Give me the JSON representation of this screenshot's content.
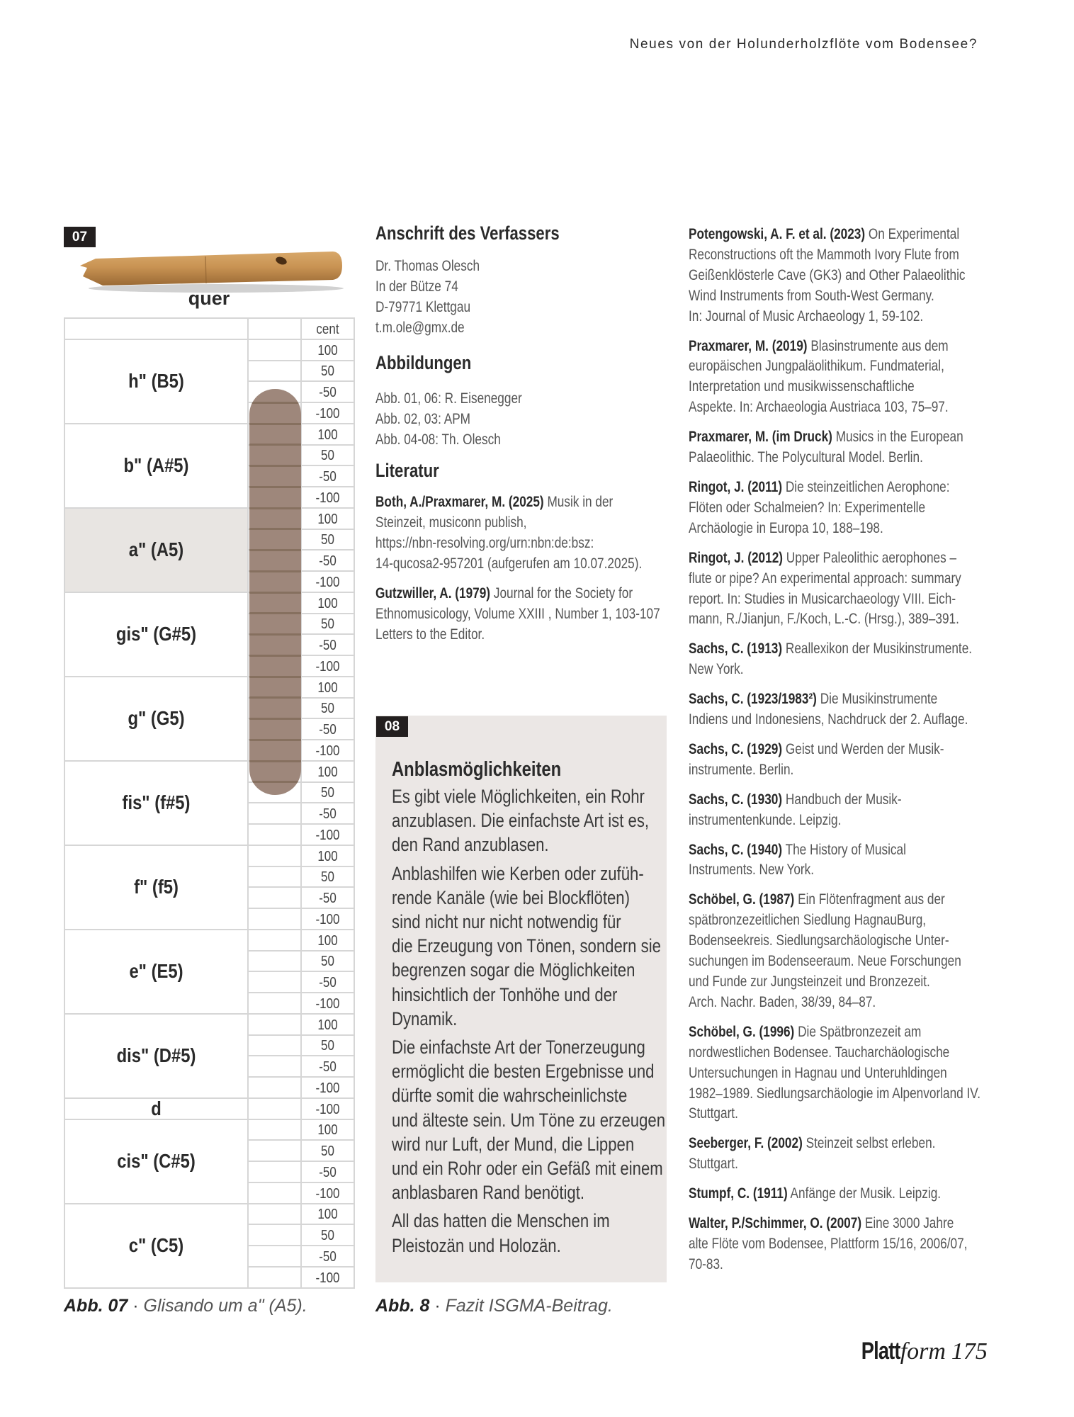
{
  "running_head": "Neues von der Holunderholzflöte vom Bodensee?",
  "figure07": {
    "label": "07",
    "image_caption": "quer",
    "table": {
      "cent_header": "cent",
      "highlighted_note": "a\" (A5)",
      "highlight_color": "#e8e5e2",
      "bar_color": "#9e877b",
      "notes": [
        {
          "name": "h\" (B5)",
          "cents": [
            "100",
            "50",
            "-50",
            "-100"
          ]
        },
        {
          "name": "b\" (A#5)",
          "cents": [
            "100",
            "50",
            "-50",
            "-100"
          ]
        },
        {
          "name": "a\" (A5)",
          "cents": [
            "100",
            "50",
            "-50",
            "-100"
          ]
        },
        {
          "name": "gis\" (G#5)",
          "cents": [
            "100",
            "50",
            "-50",
            "-100"
          ]
        },
        {
          "name": "g\" (G5)",
          "cents": [
            "100",
            "50",
            "-50",
            "-100"
          ]
        },
        {
          "name": "fis\" (f#5)",
          "cents": [
            "100",
            "50",
            "-50",
            "-100"
          ]
        },
        {
          "name": "f\" (f5)",
          "cents": [
            "100",
            "50",
            "-50",
            "-100"
          ]
        },
        {
          "name": "e\" (E5)",
          "cents": [
            "100",
            "50",
            "-50",
            "-100"
          ]
        },
        {
          "name": "dis\" (D#5)",
          "cents": [
            "100",
            "50",
            "-50",
            "-100"
          ]
        },
        {
          "name": "d",
          "cents": [
            "-100"
          ]
        },
        {
          "name": "cis\" (C#5)",
          "cents": [
            "100",
            "50",
            "-50",
            "-100"
          ]
        },
        {
          "name": "c\" (C5)",
          "cents": [
            "100",
            "50",
            "-50",
            "-100"
          ]
        }
      ],
      "glissando": {
        "from": {
          "note": "h\" (B5)",
          "cent": "-50"
        },
        "to": {
          "note": "fis\" (f#5)",
          "cent": "50"
        }
      }
    },
    "caption_prefix": "Abb. 07",
    "caption_sep": " · ",
    "caption_text": "Glisando um a\" (A5)."
  },
  "author_address": {
    "heading": "Anschrift des Verfassers",
    "lines": [
      "Dr. Thomas Olesch",
      "In der Bütze 74",
      "D-79771 Klettgau",
      "t.m.ole@gmx.de"
    ]
  },
  "illustrations": {
    "heading": "Abbildungen",
    "lines": [
      "Abb. 01, 06: R. Eisenegger",
      "Abb. 02, 03: APM",
      "Abb. 04-08: Th. Olesch"
    ]
  },
  "literature": {
    "heading": "Literatur",
    "refs_middle": [
      {
        "author": "Both, A./Praxmarer, M. (2025)",
        "lines": [
          "Musik in der",
          "Steinzeit, musiconn publish,",
          "https://nbn-resolving.org/urn:nbn:de:bsz:",
          "14-qucosa2-957201 (aufgerufen am 10.07.2025)."
        ]
      },
      {
        "author": "Gutzwiller, A. (1979)",
        "lines": [
          "Journal for the Society for",
          "Ethnomusicology, Volume XXIII , Number 1, 103-107",
          "Letters to the Editor."
        ]
      }
    ],
    "refs_right": [
      {
        "author": "Potengowski, A. F. et al. (2023)",
        "lines": [
          "On Experimental",
          "Reconstructions oft the Mammoth Ivory Flute from",
          "Geißenklösterle Cave (GK3) and Other Palaeolithic",
          "Wind Instruments from South-West Germany.",
          "In: Journal of Music Archaeology 1, 59-102."
        ]
      },
      {
        "author": "Praxmarer, M. (2019)",
        "lines": [
          "Blasinstrumente aus dem",
          "europäischen Jungpaläolithikum. Fundmaterial,",
          "Interpretation und musikwissenschaftliche",
          "Aspekte. In: Archaeologia Austriaca 103, 75–97."
        ]
      },
      {
        "author": "Praxmarer, M. (im Druck)",
        "lines": [
          "Musics in the European",
          "Palaeolithic. The Polycultural Model. Berlin."
        ]
      },
      {
        "author": "Ringot, J. (2011)",
        "lines": [
          "Die steinzeitlichen Aerophone:",
          "Flöten oder Schalmeien? In: Experimentelle",
          "Archäologie in Europa 10, 188–198."
        ]
      },
      {
        "author": "Ringot, J. (2012)",
        "lines": [
          "Upper Paleolithic aerophones –",
          "flute or pipe? An experimental approach: summary",
          "report. In: Studies in Musicarchaeology VIII. Eich-",
          "mann, R./Jianjun, F./Koch, L.-C. (Hrsg.), 389–391."
        ]
      },
      {
        "author": "Sachs, C. (1913)",
        "lines": [
          "Reallexikon der Musikinstrumente.",
          "New York."
        ]
      },
      {
        "author": "Sachs, C. (1923/1983²)",
        "lines": [
          "Die Musikinstrumente",
          "Indiens und Indonesiens, Nachdruck der 2. Auflage."
        ]
      },
      {
        "author": "Sachs, C. (1929)",
        "lines": [
          "Geist und Werden der Musik-",
          "instrumente. Berlin."
        ]
      },
      {
        "author": "Sachs, C. (1930)",
        "lines": [
          "Handbuch der Musik-",
          "instrumentenkunde. Leipzig."
        ]
      },
      {
        "author": "Sachs, C. (1940)",
        "lines": [
          "The History of Musical",
          "Instruments. New York."
        ]
      },
      {
        "author": "Schöbel, G. (1987)",
        "lines": [
          "Ein Flötenfragment aus der",
          "spätbronzezeitlichen Siedlung HagnauBurg,",
          "Bodenseekreis. Siedlungsarchäologische Unter-",
          "suchungen im Bodenseeraum. Neue Forschungen",
          "und Funde zur Jungsteinzeit und Bronzezeit.",
          "Arch. Nachr. Baden, 38/39, 84–87."
        ]
      },
      {
        "author": "Schöbel, G. (1996)",
        "lines": [
          "Die Spätbronzezeit am",
          "nordwestlichen Bodensee. Taucharchäologische",
          "Untersuchungen in Hagnau und Unteruhldingen",
          "1982–1989. Siedlungsarchäologie im Alpenvorland IV.",
          "Stuttgart."
        ]
      },
      {
        "author": "Seeberger, F. (2002)",
        "lines": [
          "Steinzeit selbst erleben.",
          "Stuttgart."
        ]
      },
      {
        "author": "Stumpf, C. (1911)",
        "lines": [
          "Anfänge der Musik. Leipzig."
        ]
      },
      {
        "author": "Walter, P./Schimmer, O. (2007)",
        "lines": [
          "Eine 3000 Jahre",
          "alte Flöte vom Bodensee, Plattform 15/16, 2006/07,",
          "70-83."
        ]
      }
    ]
  },
  "figure08": {
    "label": "08",
    "box_color": "#ebe7e5",
    "heading": "Anblasmöglichkeiten",
    "paragraphs": [
      [
        "Es gibt viele Möglichkeiten, ein Rohr",
        "anzublasen. Die einfachste Art ist es,",
        "den Rand anzublasen."
      ],
      [
        "Anblashilfen wie Kerben oder zufüh-",
        "rende Kanäle (wie bei  Blockflöten)",
        "sind nicht nur nicht notwendig für",
        "die Erzeugung von Tönen, sondern sie",
        "begrenzen sogar die Möglichkeiten",
        "hinsichtlich  der Tonhöhe und der",
        "Dynamik."
      ],
      [
        "Die einfachste Art der Tonerzeugung",
        "ermöglicht die besten Ergebnisse und",
        "dürfte somit die wahrscheinlichste",
        "und älteste sein. Um Töne zu erzeugen",
        "wird nur Luft, der Mund, die Lippen",
        "und ein Rohr oder ein Gefäß mit einem",
        "anblasbaren Rand benötigt."
      ],
      [
        "All das hatten die Menschen im",
        "Pleistozän und Holozän."
      ]
    ],
    "caption_prefix": "Abb. 8",
    "caption_sep": " · ",
    "caption_text": "Fazit ISGMA-Beitrag."
  },
  "footer": {
    "brand_bold": "Platt",
    "brand_italic": "form",
    "page_number": "175"
  }
}
